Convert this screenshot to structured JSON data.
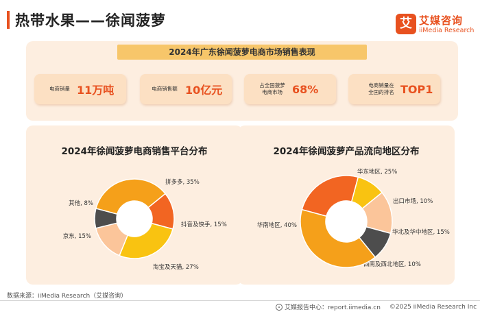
{
  "header": {
    "title": "热带水果——徐闻菠萝",
    "logo_mark": "艾",
    "logo_cn": "艾媒咨询",
    "logo_en": "iiMedia Research"
  },
  "summary": {
    "banner": "2024年广东徐闻菠萝电商市场销售表现",
    "stats": [
      {
        "label_lines": [
          "电商销量"
        ],
        "value": "11万吨"
      },
      {
        "label_lines": [
          "电商销售额"
        ],
        "value": "10亿元"
      },
      {
        "label_lines": [
          "占全国菠萝",
          "电商市场"
        ],
        "value": "68%"
      },
      {
        "label_lines": [
          "电商销量在",
          "全国的排名"
        ],
        "value": "TOP1"
      }
    ]
  },
  "colors": {
    "accent": "#e8511f",
    "panel_bg": "#fdeee0",
    "banner_bg": "#f7c66a"
  },
  "chart_data": [
    {
      "type": "pie",
      "title": "2024年徐闻菠萝电商销售平台分布",
      "unit": "%",
      "slices": [
        {
          "label": "拼多多",
          "value": 35,
          "display": "拼多多, 35%",
          "color": "#f5a01a"
        },
        {
          "label": "抖音及快手",
          "value": 15,
          "display": "抖音及快手, 15%",
          "color": "#f26522"
        },
        {
          "label": "淘宝及天猫",
          "value": 27,
          "display": "淘宝及天猫, 27%",
          "color": "#f9c311"
        },
        {
          "label": "京东",
          "value": 15,
          "display": "京东, 15%",
          "color": "#fbc59a"
        },
        {
          "label": "其他",
          "value": 8,
          "display": "其他, 8%",
          "color": "#4d4d4d"
        }
      ]
    },
    {
      "type": "pie",
      "title": "2024年徐闻菠萝产品流向地区分布",
      "unit": "%",
      "slices": [
        {
          "label": "华东地区",
          "value": 25,
          "display": "华东地区, 25%",
          "color": "#f26522"
        },
        {
          "label": "出口市场",
          "value": 10,
          "display": "出口市场, 10%",
          "color": "#f9c311"
        },
        {
          "label": "华北及华中地区",
          "value": 15,
          "display": "华北及华中地区, 15%",
          "color": "#fbc59a"
        },
        {
          "label": "西南及西北地区",
          "value": 10,
          "display": "西南及西北地区, 10%",
          "color": "#4d4d4d"
        },
        {
          "label": "华南地区",
          "value": 40,
          "display": "华南地区, 40%",
          "color": "#f5a01a"
        }
      ]
    }
  ],
  "footer": {
    "source": "数据来源：iiMedia Research（艾媒咨询）",
    "center": "艾媒报告中心：report.iimedia.cn",
    "copyright": "©2025  iiMedia Research  Inc"
  }
}
